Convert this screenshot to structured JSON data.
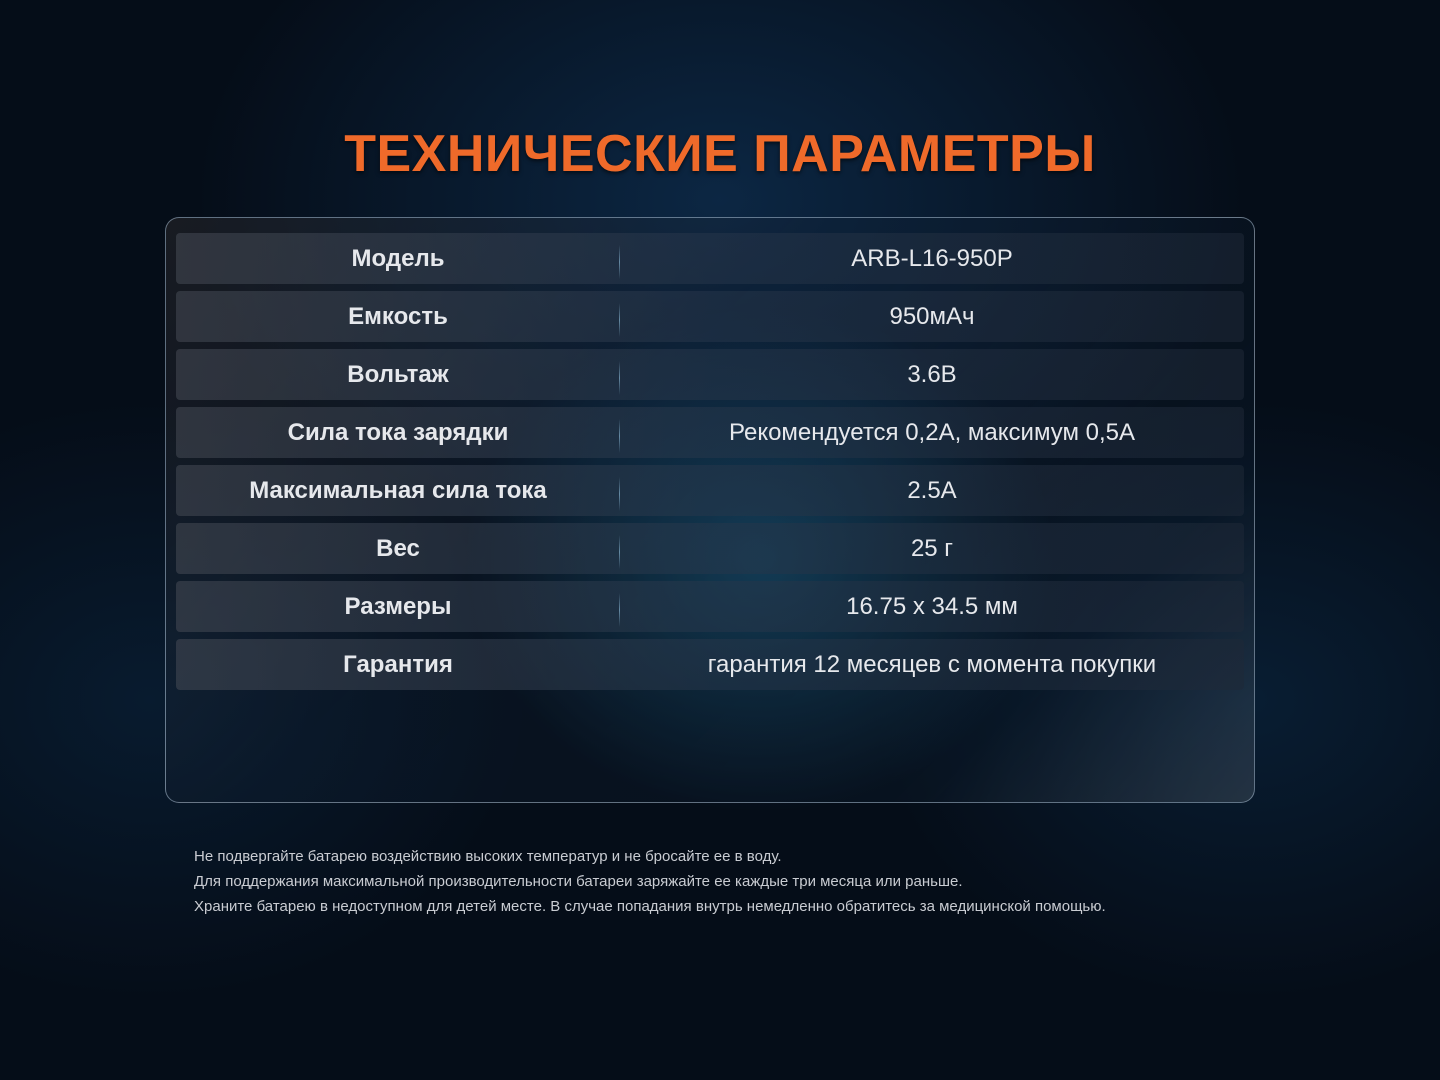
{
  "title": "ТЕХНИЧЕСКИЕ ПАРАМЕТРЫ",
  "specs": [
    {
      "label": "Модель",
      "value": "ARB-L16-950P"
    },
    {
      "label": "Емкость",
      "value": "950мАч"
    },
    {
      "label": "Вольтаж",
      "value": "3.6В"
    },
    {
      "label": "Сила тока зарядки",
      "value": "Рекомендуется 0,2А, максимум 0,5А"
    },
    {
      "label": "Максимальная сила тока",
      "value": "2.5А"
    },
    {
      "label": "Вес",
      "value": "25 г"
    },
    {
      "label": "Размеры",
      "value": "16.75 x 34.5 мм"
    },
    {
      "label": "Гарантия",
      "value": "гарантия 12 месяцев с момента покупки"
    }
  ],
  "notes": [
    "Не подвергайте батарею воздействию высоких температур и не бросайте ее в воду.",
    "Для поддержания максимальной производительности батареи заряжайте ее каждые три месяца или раньше.",
    "Храните батарею в недоступном для детей месте. В случае попадания внутрь немедленно обратитесь за медицинской помощью."
  ],
  "colors": {
    "title": "#ef6a2a",
    "background": "#050d18"
  }
}
